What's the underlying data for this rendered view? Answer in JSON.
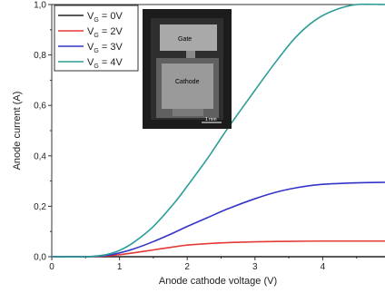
{
  "chart_data": {
    "type": "line",
    "xlabel": "Anode cathode voltage (V)",
    "ylabel": "Anode current (A)",
    "xlim": [
      0,
      5
    ],
    "ylim": [
      0,
      1.0
    ],
    "x_ticks": [
      "0",
      "1",
      "2",
      "3",
      "4"
    ],
    "y_ticks": [
      "0,0",
      "0,2",
      "0,4",
      "0,6",
      "0,8",
      "1,0"
    ],
    "legend_position": "top-left",
    "grid": false,
    "series": [
      {
        "name_main": "V",
        "name_sub": "G",
        "name_rest": " = 0V",
        "color": "#222222",
        "points": [
          [
            0,
            0
          ],
          [
            1,
            0
          ],
          [
            2,
            0
          ],
          [
            3,
            0
          ],
          [
            4,
            0
          ],
          [
            5,
            0
          ]
        ]
      },
      {
        "name_main": "V",
        "name_sub": "G",
        "name_rest": " = 2V",
        "color": "#e53935",
        "points": [
          [
            0,
            0
          ],
          [
            0.5,
            0
          ],
          [
            0.8,
            0.003
          ],
          [
            1.0,
            0.008
          ],
          [
            1.2,
            0.015
          ],
          [
            1.5,
            0.027
          ],
          [
            1.8,
            0.039
          ],
          [
            2.0,
            0.046
          ],
          [
            2.3,
            0.052
          ],
          [
            2.6,
            0.056
          ],
          [
            3.0,
            0.059
          ],
          [
            3.5,
            0.061
          ],
          [
            4.0,
            0.062
          ],
          [
            4.5,
            0.062
          ],
          [
            5.0,
            0.062
          ]
        ]
      },
      {
        "name_main": "V",
        "name_sub": "G",
        "name_rest": " = 3V",
        "color": "#3434c8",
        "points": [
          [
            0,
            0
          ],
          [
            0.5,
            0
          ],
          [
            0.8,
            0.005
          ],
          [
            1.0,
            0.015
          ],
          [
            1.2,
            0.03
          ],
          [
            1.5,
            0.06
          ],
          [
            1.8,
            0.095
          ],
          [
            2.0,
            0.12
          ],
          [
            2.3,
            0.155
          ],
          [
            2.6,
            0.19
          ],
          [
            3.0,
            0.23
          ],
          [
            3.3,
            0.255
          ],
          [
            3.6,
            0.273
          ],
          [
            4.0,
            0.287
          ],
          [
            4.5,
            0.293
          ],
          [
            5.0,
            0.295
          ]
        ]
      },
      {
        "name_main": "V",
        "name_sub": "G",
        "name_rest": " = 4V",
        "color": "#2a9d96",
        "points": [
          [
            0,
            0
          ],
          [
            0.5,
            0
          ],
          [
            0.8,
            0.008
          ],
          [
            1.0,
            0.025
          ],
          [
            1.2,
            0.055
          ],
          [
            1.5,
            0.12
          ],
          [
            1.8,
            0.21
          ],
          [
            2.0,
            0.28
          ],
          [
            2.3,
            0.39
          ],
          [
            2.6,
            0.51
          ],
          [
            3.0,
            0.66
          ],
          [
            3.3,
            0.77
          ],
          [
            3.6,
            0.87
          ],
          [
            3.9,
            0.94
          ],
          [
            4.2,
            0.98
          ],
          [
            4.5,
            1.0
          ],
          [
            5.0,
            1.0
          ]
        ]
      }
    ],
    "inset": {
      "label_gate": "Gate",
      "label_cathode": "Cathode",
      "scale_label": "1 mm"
    }
  }
}
